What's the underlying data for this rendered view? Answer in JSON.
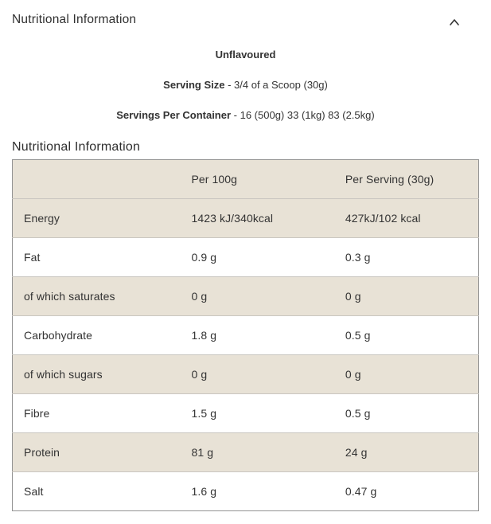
{
  "accordion": {
    "title": "Nutritional Information",
    "chevron_icon": "chevron-up"
  },
  "intro": {
    "flavour": "Unflavoured",
    "serving_size_label": "Serving Size",
    "serving_size_value": "- 3/4 of a Scoop (30g)",
    "servings_per_container_label": "Servings Per Container",
    "servings_per_container_value": "- 16 (500g) 33 (1kg) 83 (2.5kg)"
  },
  "section_title": "Nutritional Information",
  "table": {
    "columns": [
      "",
      "Per 100g",
      "Per Serving (30g)"
    ],
    "rows": [
      {
        "label": "Energy",
        "per_100g": "1423 kJ/340kcal",
        "per_serving": "427kJ/102 kcal"
      },
      {
        "label": "Fat",
        "per_100g": "0.9 g",
        "per_serving": "0.3 g"
      },
      {
        "label": "of which saturates",
        "per_100g": "0 g",
        "per_serving": "0 g"
      },
      {
        "label": "Carbohydrate",
        "per_100g": "1.8 g",
        "per_serving": "0.5 g"
      },
      {
        "label": "of which sugars",
        "per_100g": "0 g",
        "per_serving": "0 g"
      },
      {
        "label": "Fibre",
        "per_100g": "1.5 g",
        "per_serving": "0.5 g"
      },
      {
        "label": "Protein",
        "per_100g": "81 g",
        "per_serving": "24 g"
      },
      {
        "label": "Salt",
        "per_100g": "1.6 g",
        "per_serving": "0.47 g"
      }
    ]
  },
  "colors": {
    "row_shade": "#e8e2d6",
    "outer_border": "#929292",
    "inner_border": "#c9c6c0",
    "text": "#333333"
  }
}
